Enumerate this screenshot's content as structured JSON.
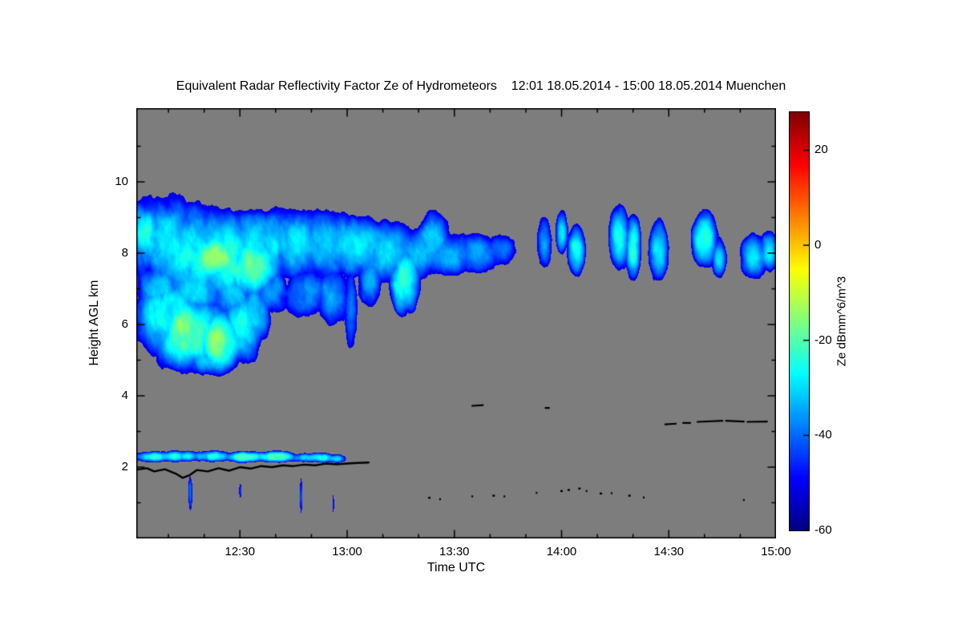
{
  "title": "Equivalent Radar Reflectivity Factor Ze of Hydrometeors    12:01 18.05.2014 - 15:00 18.05.2014 Muenchen",
  "chart_data": {
    "type": "heatmap",
    "title": "Equivalent Radar Reflectivity Factor Ze of Hydrometeors",
    "time_span": "12:01 18.05.2014 - 15:00 18.05.2014",
    "station": "Muenchen",
    "xlabel": "Time UTC",
    "ylabel": "Height AGL km",
    "x_ticks": [
      "12:30",
      "13:00",
      "13:30",
      "14:00",
      "14:30",
      "15:00"
    ],
    "x_tick_minutes": [
      30,
      60,
      90,
      120,
      150,
      180
    ],
    "x_range_minutes": [
      1,
      180
    ],
    "y_ticks": [
      2,
      4,
      6,
      8,
      10
    ],
    "y_range_km": [
      0,
      12.07
    ],
    "background_color": "#7d7d7d",
    "nodata_threshold_dbz": -52,
    "colorbar": {
      "label": "Ze dBmm^6/m^3",
      "ticks": [
        20,
        0,
        -20,
        -40,
        -60
      ],
      "range": [
        -60,
        28
      ],
      "colormap": "jet",
      "position": "right"
    },
    "clouds_format": "[t_center_min_after_12:00, height_km, radius_t_min, radius_h_km, peak_ze_dbz, falloff_db_per_unit]",
    "clouds": [
      [
        3,
        8.6,
        3,
        0.7,
        -22,
        16
      ],
      [
        4,
        8.4,
        5,
        1.0,
        -30,
        16
      ],
      [
        10,
        8.1,
        7,
        1.2,
        -27,
        16
      ],
      [
        18,
        7.95,
        8,
        1.1,
        -24,
        16
      ],
      [
        26,
        7.85,
        8,
        1.0,
        -23,
        16
      ],
      [
        23,
        7.9,
        5,
        0.5,
        -14,
        16
      ],
      [
        33,
        7.6,
        6,
        0.7,
        -18,
        16
      ],
      [
        36,
        8.25,
        8,
        0.9,
        -26,
        16
      ],
      [
        45,
        8.25,
        8,
        0.85,
        -28,
        16
      ],
      [
        54,
        8.25,
        8,
        0.8,
        -29,
        16
      ],
      [
        63,
        8.15,
        8,
        0.7,
        -30,
        14
      ],
      [
        72,
        8.05,
        7,
        0.7,
        -30,
        14
      ],
      [
        80,
        8.0,
        6,
        0.6,
        -32,
        13
      ],
      [
        88,
        8.0,
        7,
        0.5,
        -34,
        12
      ],
      [
        96,
        8.0,
        6,
        0.45,
        -37,
        11
      ],
      [
        103,
        8.1,
        4,
        0.4,
        -40,
        10
      ],
      [
        8,
        7.1,
        6,
        0.8,
        -30,
        16
      ],
      [
        18,
        6.95,
        7,
        0.7,
        -28,
        16
      ],
      [
        28,
        6.85,
        6,
        0.6,
        -30,
        15
      ],
      [
        38,
        6.95,
        5,
        0.6,
        -33,
        14
      ],
      [
        48,
        6.9,
        5,
        0.6,
        -34,
        13
      ],
      [
        56,
        6.8,
        4,
        0.7,
        -36,
        12
      ],
      [
        61,
        6.5,
        1.5,
        0.9,
        -38,
        10
      ],
      [
        66,
        7.2,
        3,
        0.6,
        -34,
        13
      ],
      [
        76,
        7.3,
        3.5,
        0.8,
        -21,
        18
      ],
      [
        84,
        8.4,
        4,
        0.6,
        -30,
        14
      ],
      [
        10,
        6.2,
        7,
        0.9,
        -22,
        16
      ],
      [
        16,
        5.8,
        9,
        0.85,
        -18,
        16
      ],
      [
        14,
        5.95,
        5,
        0.55,
        -13,
        18
      ],
      [
        24,
        5.6,
        6,
        0.65,
        -16,
        16
      ],
      [
        30,
        5.95,
        5,
        0.8,
        -24,
        16
      ],
      [
        34,
        6.4,
        4,
        0.8,
        -28,
        15
      ],
      [
        20,
        5.05,
        6,
        0.4,
        -30,
        18
      ],
      [
        115,
        8.3,
        1.6,
        0.55,
        -33,
        10
      ],
      [
        120,
        8.6,
        1.2,
        0.4,
        -30,
        10
      ],
      [
        124,
        8.1,
        1.8,
        0.5,
        -26,
        12
      ],
      [
        136,
        8.45,
        2,
        0.6,
        -28,
        11
      ],
      [
        140,
        8.2,
        1.5,
        0.6,
        -25,
        12
      ],
      [
        147,
        8.1,
        2,
        0.6,
        -30,
        11
      ],
      [
        160,
        8.4,
        2.5,
        0.55,
        -22,
        13
      ],
      [
        164,
        7.9,
        1.5,
        0.4,
        -32,
        10
      ],
      [
        174,
        7.9,
        3,
        0.45,
        -30,
        11
      ],
      [
        178,
        8.05,
        2,
        0.4,
        -28,
        11
      ],
      [
        5,
        2.3,
        5,
        0.14,
        -25,
        24
      ],
      [
        13,
        2.32,
        6,
        0.15,
        -23,
        24
      ],
      [
        22,
        2.32,
        6,
        0.15,
        -24,
        24
      ],
      [
        31,
        2.3,
        6,
        0.14,
        -22,
        24
      ],
      [
        40,
        2.3,
        6,
        0.14,
        -21,
        24
      ],
      [
        50,
        2.28,
        7,
        0.13,
        -24,
        24
      ],
      [
        57,
        2.25,
        3,
        0.11,
        -30,
        20
      ],
      [
        16,
        1.3,
        0.5,
        0.45,
        -40,
        10
      ],
      [
        30,
        1.35,
        0.35,
        0.2,
        -42,
        10
      ],
      [
        47,
        1.2,
        0.35,
        0.5,
        -43,
        10
      ],
      [
        56,
        1.0,
        0.3,
        0.3,
        -45,
        10
      ]
    ],
    "black_marks": {
      "base_line": [
        [
          1,
          1.93
        ],
        [
          4,
          1.97
        ],
        [
          6,
          1.88
        ],
        [
          9,
          1.94
        ],
        [
          12,
          1.82
        ],
        [
          14,
          1.7
        ],
        [
          16,
          1.78
        ],
        [
          18,
          1.92
        ],
        [
          21,
          1.88
        ],
        [
          24,
          1.97
        ],
        [
          27,
          1.9
        ],
        [
          30,
          2.0
        ],
        [
          33,
          1.96
        ],
        [
          36,
          2.03
        ],
        [
          39,
          2.0
        ],
        [
          42,
          2.05
        ],
        [
          45,
          2.03
        ],
        [
          48,
          2.07
        ],
        [
          51,
          2.05
        ],
        [
          54,
          2.1
        ],
        [
          57,
          2.08
        ],
        [
          60,
          2.1
        ],
        [
          63,
          2.12
        ],
        [
          66,
          2.13
        ]
      ],
      "segments": [
        [
          95,
          3.72,
          98,
          3.74
        ],
        [
          115.5,
          3.66,
          116.5,
          3.66
        ],
        [
          149,
          3.2,
          152,
          3.22
        ],
        [
          154,
          3.24,
          156,
          3.24
        ],
        [
          158,
          3.27,
          165,
          3.3
        ],
        [
          166,
          3.3,
          171,
          3.28
        ],
        [
          172,
          3.27,
          177.5,
          3.28
        ]
      ],
      "dots": [
        [
          83,
          1.14,
          3
        ],
        [
          86,
          1.1,
          2
        ],
        [
          95,
          1.18,
          2
        ],
        [
          101,
          1.2,
          3
        ],
        [
          104,
          1.18,
          2
        ],
        [
          113,
          1.28,
          2
        ],
        [
          120,
          1.33,
          3
        ],
        [
          122,
          1.36,
          3
        ],
        [
          125,
          1.4,
          3
        ],
        [
          127,
          1.33,
          2
        ],
        [
          131,
          1.26,
          3
        ],
        [
          134,
          1.27,
          2
        ],
        [
          139,
          1.2,
          3
        ],
        [
          143,
          1.15,
          2
        ],
        [
          171,
          1.08,
          2
        ]
      ]
    }
  }
}
